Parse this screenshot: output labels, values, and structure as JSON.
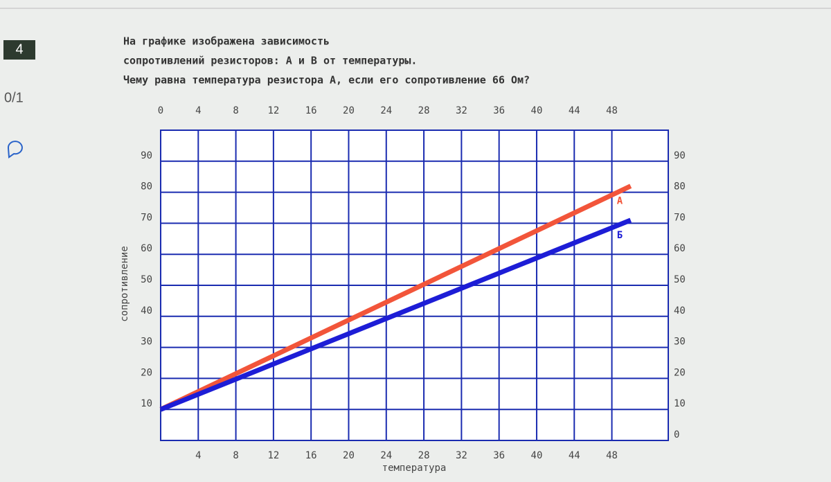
{
  "sidebar": {
    "number": "4",
    "score": "0/1"
  },
  "question": [
    "На графике изображена зависимость",
    "сопротивлений резисторов: А и В от температуры.",
    "Чему равна температура резистора А, если его сопротивление 66 Ом?"
  ],
  "chart_data": {
    "type": "line",
    "x_label": "температура",
    "y_label": "сопротивление",
    "xlim": [
      0,
      54
    ],
    "ylim": [
      0,
      100
    ],
    "y2lim": [
      0,
      100
    ],
    "xticks": [
      4,
      8,
      12,
      16,
      20,
      24,
      28,
      32,
      36,
      40,
      44,
      48
    ],
    "x2ticks": [
      0,
      4,
      8,
      12,
      16,
      20,
      24,
      28,
      32,
      36,
      40,
      44,
      48
    ],
    "yticks": [
      10,
      20,
      30,
      40,
      50,
      60,
      70,
      80,
      90
    ],
    "y2ticks": [
      0,
      10,
      20,
      30,
      40,
      50,
      60,
      70,
      80,
      90
    ],
    "grid": true,
    "grid_color": "#1a2bb0",
    "series": [
      {
        "name": "А",
        "color": "#f2553a",
        "x": [
          0,
          50
        ],
        "values": [
          10,
          82
        ]
      },
      {
        "name": "Б",
        "color": "#1d1dd6",
        "x": [
          0,
          50
        ],
        "values": [
          10,
          71
        ]
      }
    ]
  }
}
